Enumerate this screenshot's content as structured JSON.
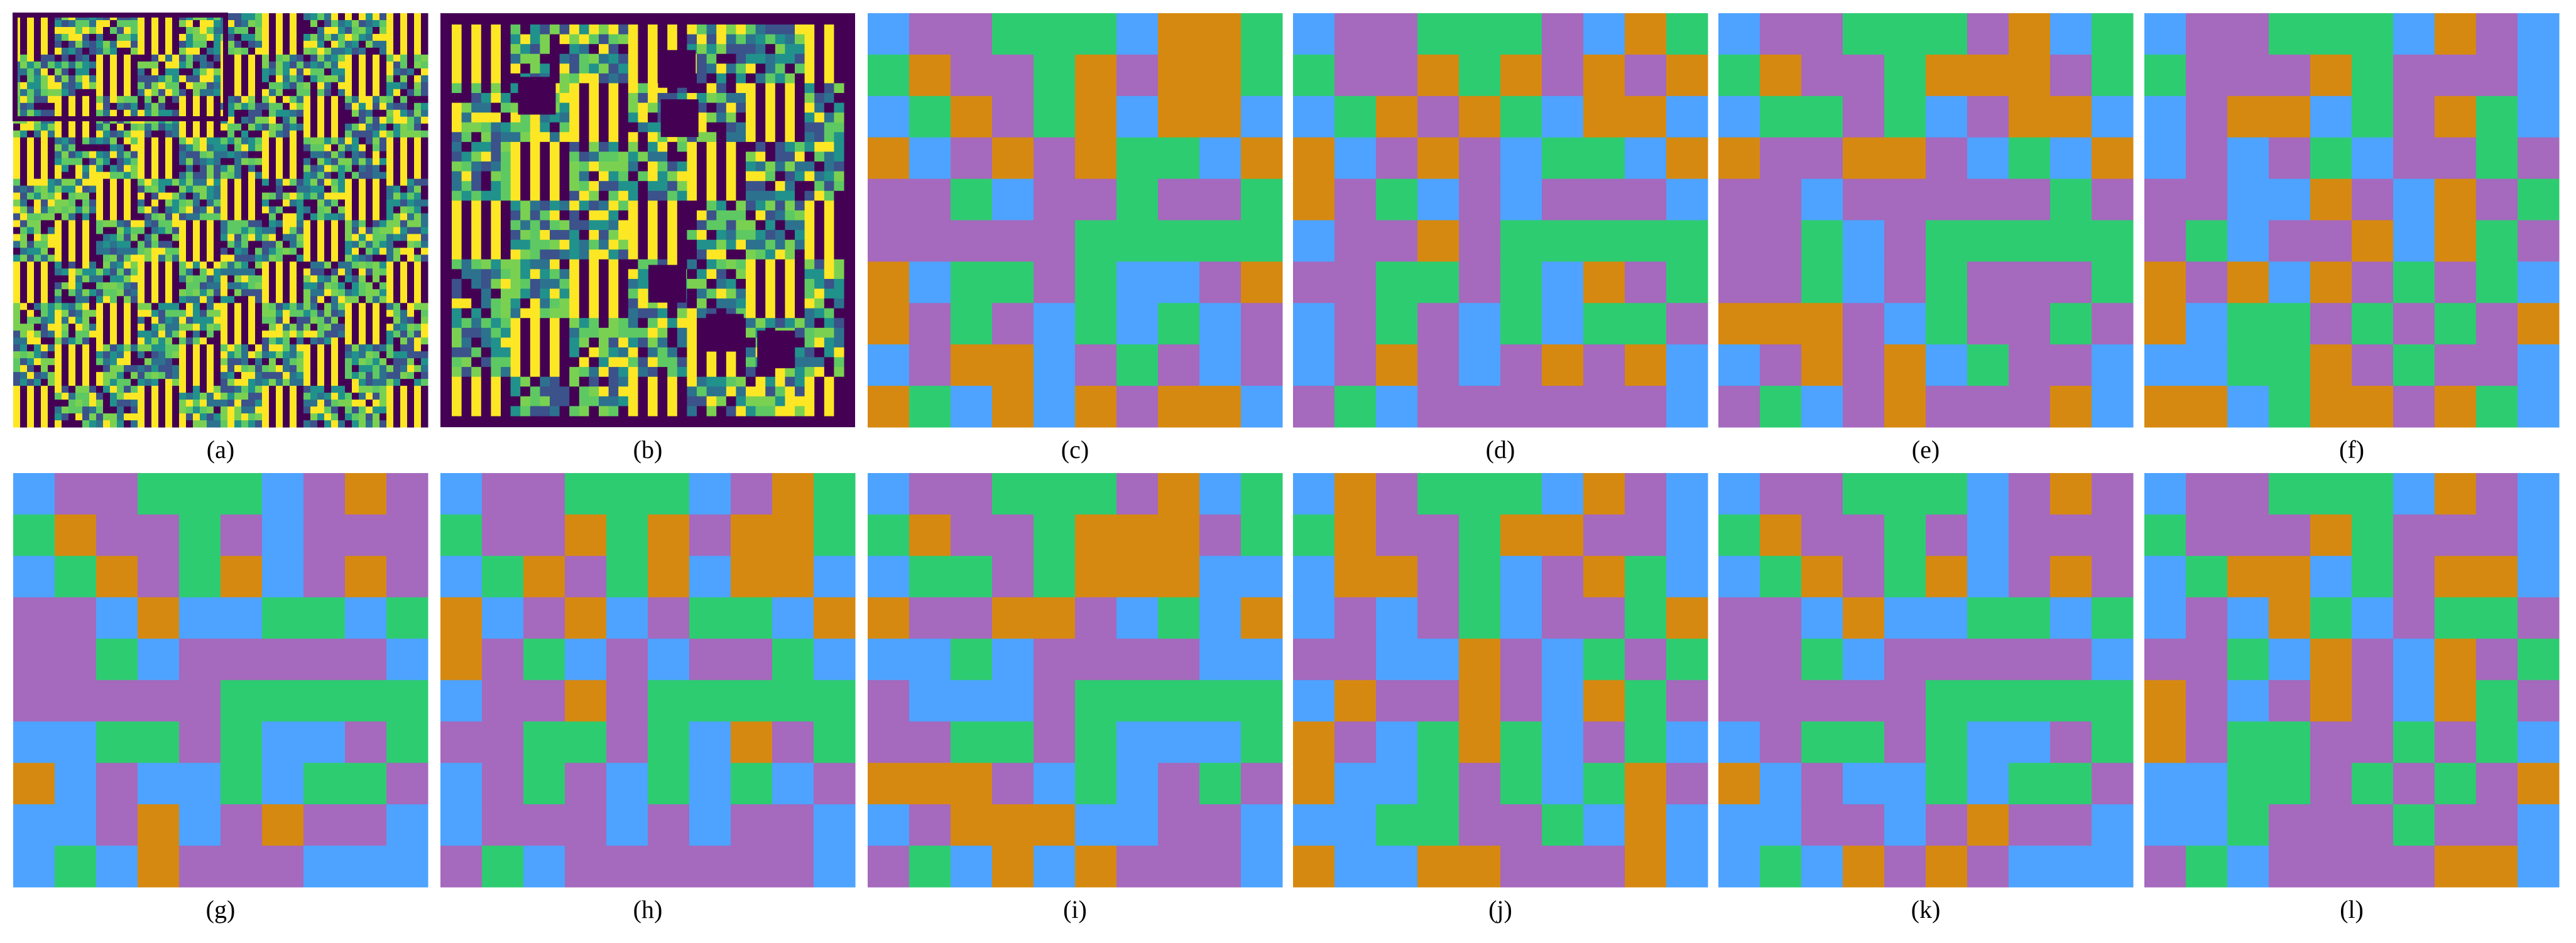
{
  "palette": {
    "B": "#4da3ff",
    "G": "#2ecc71",
    "P": "#a569bd",
    "O": "#d68910"
  },
  "panels": [
    {
      "label": "(a)"
    },
    {
      "label": "(b)"
    },
    {
      "label": "(c)",
      "grid": [
        "BPPGGGBOOG",
        "GOPPGOPOOG",
        "BGOPGOBOOB",
        "OBPOPOGGBO",
        "PPGBPPGPPG",
        "PPPPPGGGGG",
        "OBGGPGBBPO",
        "OPGPBGBGBP",
        "BPOOBPGPBP",
        "OGBOBOPOOB"
      ]
    },
    {
      "label": "(d)",
      "grid": [
        "BPPGGGPBOG",
        "GPPOGOPOPO",
        "BGOPOGBOOB",
        "OBPOPBGGBO",
        "OPGBPBPPPB",
        "BPPOPGGGGG",
        "PPGGPGBOPG",
        "BPGPBGBGGP",
        "BPOPBPOPOB",
        "PGBPPPPPPB"
      ]
    },
    {
      "label": "(e)",
      "grid": [
        "BPPGGGPOBG",
        "GOPPGOOOPG",
        "BGGPGBPOOB",
        "OPPOOPBGBO",
        "PPBPPPPPGP",
        "PPGBPGGGGG",
        "PPGBPGPPPG",
        "OOOPBGPPGP",
        "BPOPOBGPPB",
        "PGBPOPPPOB"
      ]
    },
    {
      "label": "(f)",
      "grid": [
        "BPPGGGBOPB",
        "GPPPOGPPPB",
        "BPOOBGPOGB",
        "BPBPGBPPGP",
        "PPBBOPBOPG",
        "PGBPPOBOGP",
        "OPOBOPGPGB",
        "OBGGPGPGPO",
        "BBGGOPGPPB",
        "OOBGOOPOGB"
      ]
    },
    {
      "label": "(g)",
      "grid": [
        "BPPGGGBPOP",
        "GOPPGPBPPP",
        "BGOPGOBPOP",
        "PPBOBBGGBG",
        "PPGBPPPPPB",
        "PPPPPGGGGG",
        "BBGGPGBBPG",
        "OBPBBGBGGP",
        "BBPOBPOPPB",
        "BGBOPPPBBB"
      ]
    },
    {
      "label": "(h)",
      "grid": [
        "BPPGGGBPOG",
        "GPPOGOPOOG",
        "BGOPGOBOOB",
        "OBPOBPGGBO",
        "OPGBPBPPGB",
        "BPPOPGGGGG",
        "PPGGPGBOPG",
        "BPGPBGBGBP",
        "BPPPBPBPPB",
        "PGBPPPPPPB"
      ]
    },
    {
      "label": "(i)",
      "grid": [
        "BPPGGGPOBG",
        "GOPPGOOOPG",
        "BGGPGOOOBB",
        "OPPOOPBGBO",
        "BBGBPPPPBB",
        "PBBBPGGGGG",
        "PPGGPGBBBG",
        "OOOPBGBPGP",
        "BPOOOBBPPB",
        "PGBOBOPPPB"
      ]
    },
    {
      "label": "(j)",
      "grid": [
        "BOPGGGBOPB",
        "GOPPGOOPPB",
        "BOOPGBPOGB",
        "BPBPGBPPGO",
        "PPBBOPBGPG",
        "BOPPOPBOGP",
        "OPBGOGBPGB",
        "OBBGPGBGOP",
        "BBGGPPGBOB",
        "OBBOOPPPOB"
      ]
    },
    {
      "label": "(k)",
      "grid": [
        "BPPGGGBPOP",
        "GOPPGPBPPP",
        "BGOPGOBPOP",
        "PPBOBBGGBG",
        "PPGBPPPPPB",
        "PPPPPGGGGG",
        "BPGGPGBBPG",
        "OBPBBGBGGP",
        "BBPPBPOPPB",
        "BGBOPOPBBB"
      ]
    },
    {
      "label": "(l)",
      "grid": [
        "BPPGGGBOPB",
        "GPPPOGPPPB",
        "BGOOBGPOOB",
        "BPBOGBPGGP",
        "PPGBOPBOPG",
        "OPBPOPBOGP",
        "OPGGPPGPGB",
        "BBGGPGPGPO",
        "BBGPPPGPPB",
        "PGBPPPPOOB"
      ]
    }
  ]
}
